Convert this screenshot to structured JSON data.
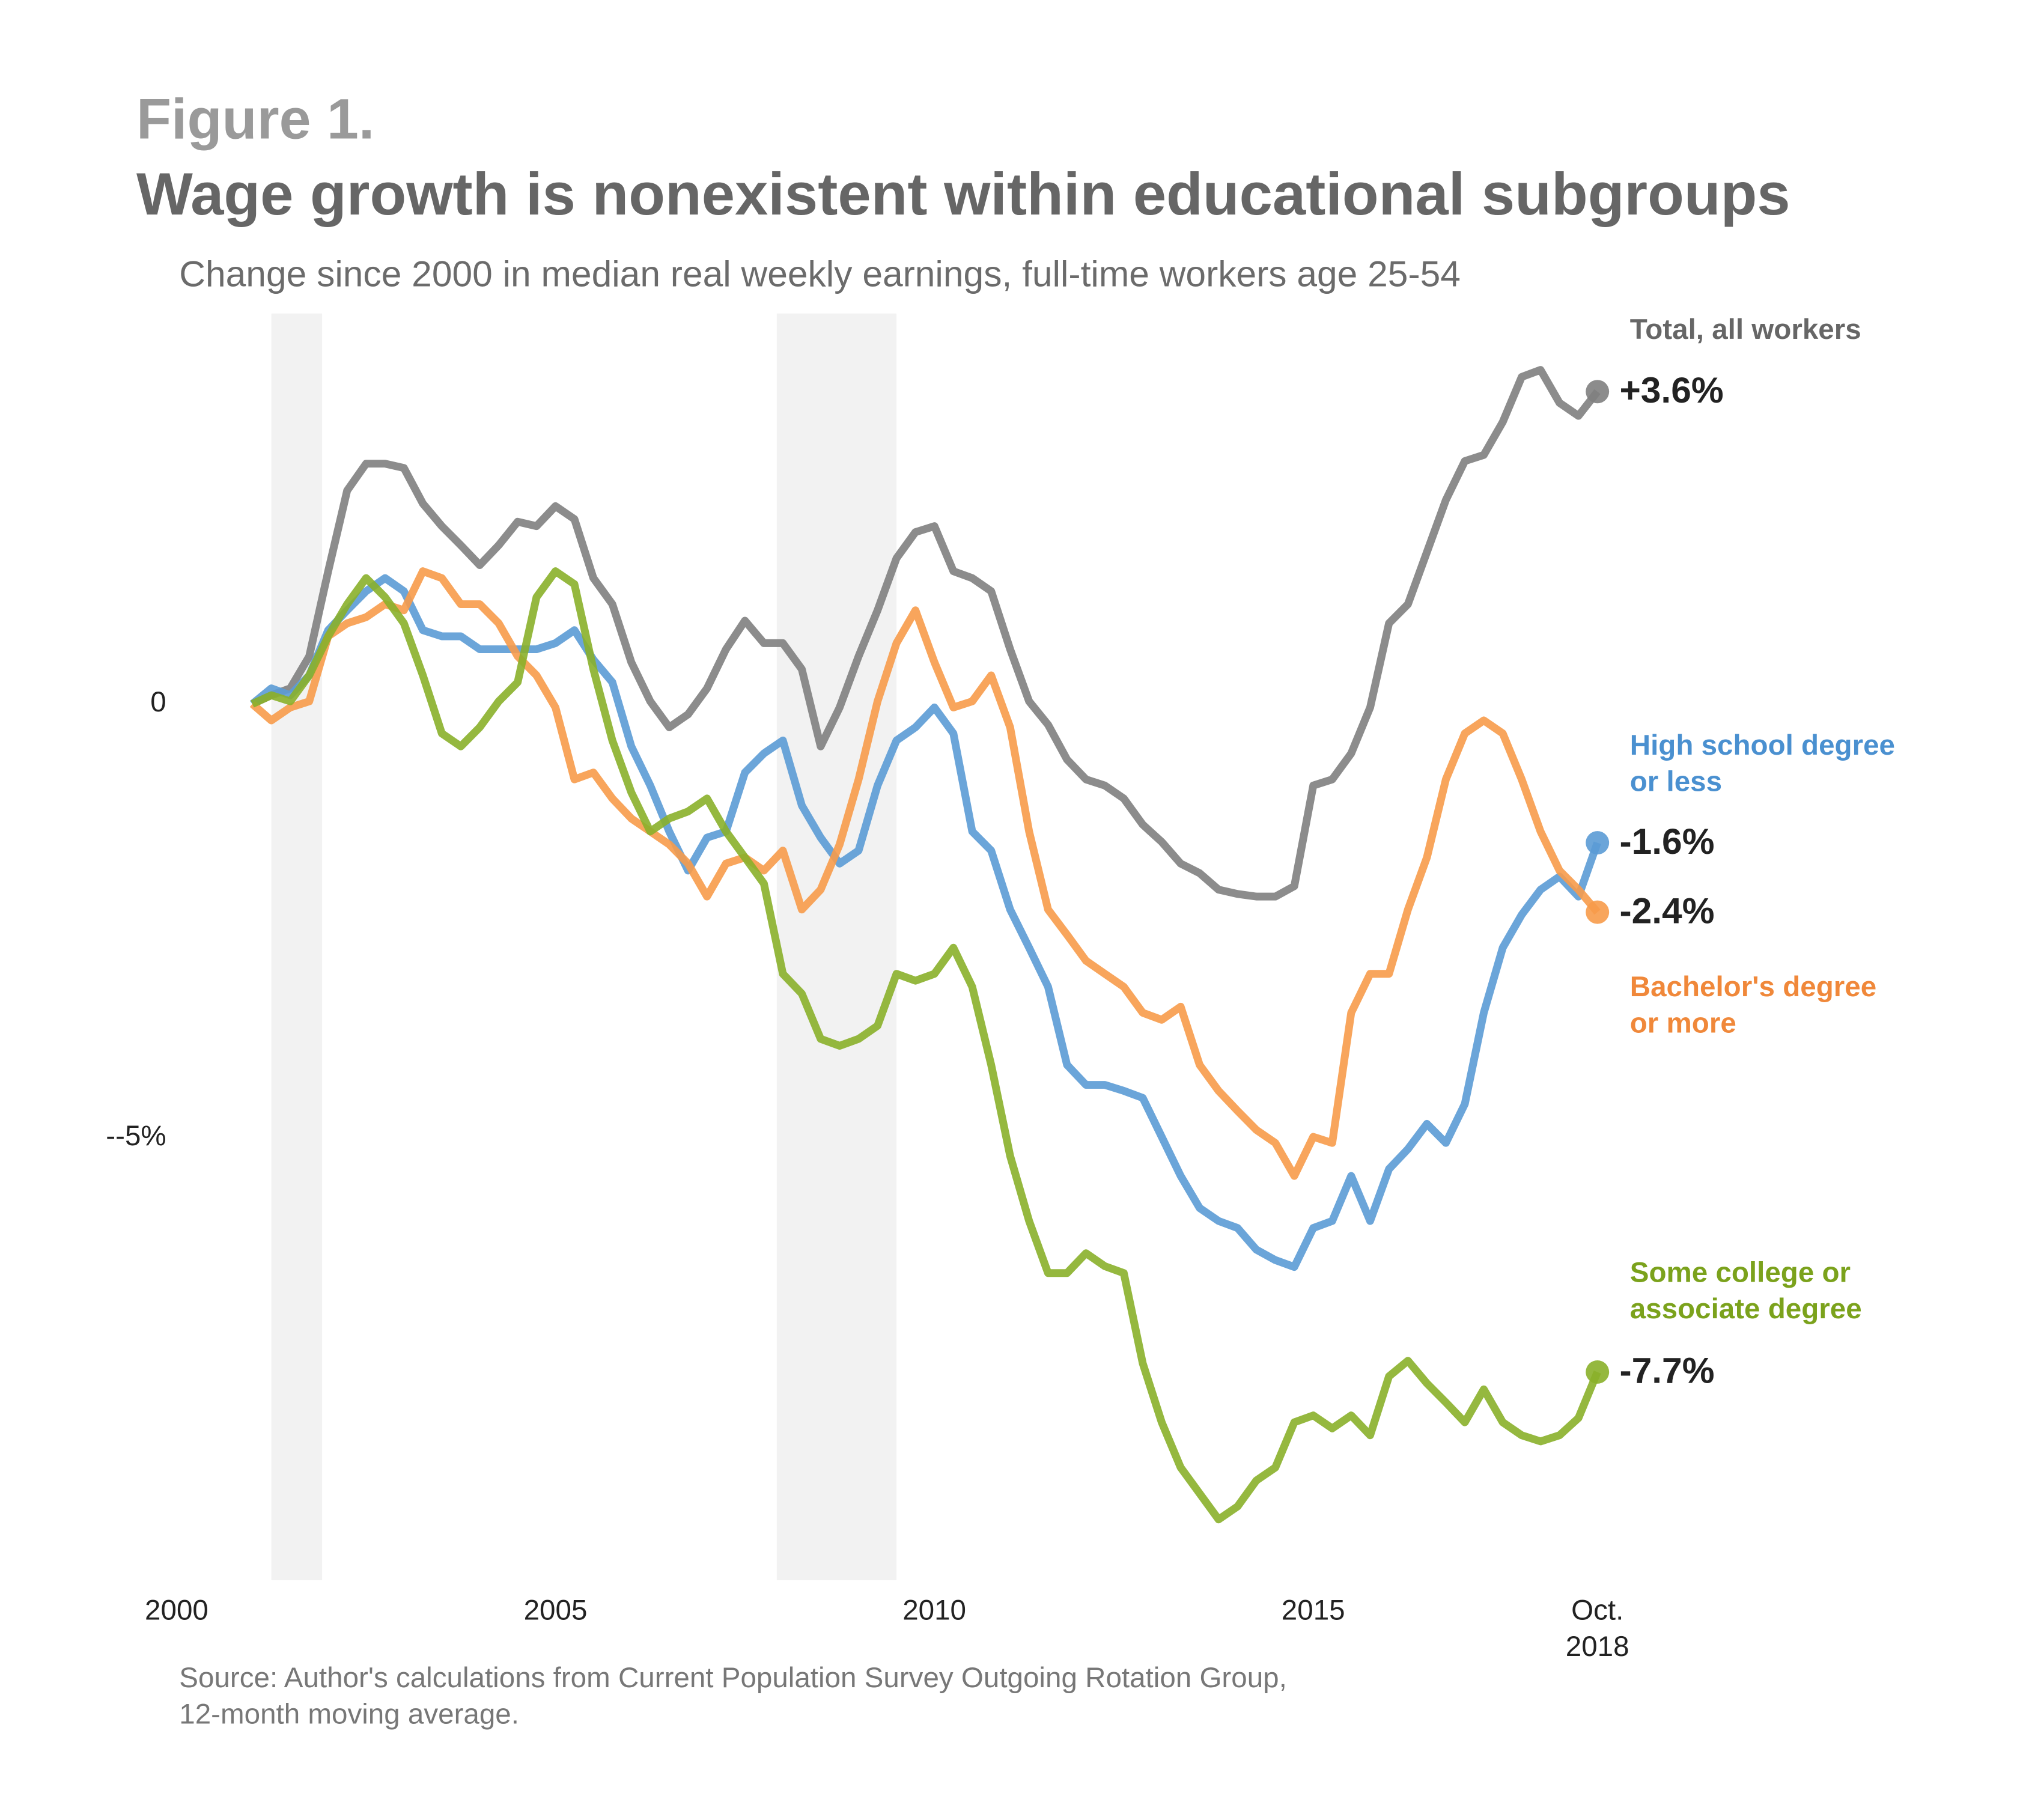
{
  "chart_data": {
    "type": "line",
    "figure_label": "Figure 1.",
    "title": "Wage growth is nonexistent within educational subgroups",
    "subtitle": "Change since 2000 in median real weekly earnings, full-time workers age 25-54",
    "source": "Source: Author's calculations from Current Population Survey Outgoing Rotation Group,\n12-month moving average.",
    "xlim": [
      2000,
      2018.75
    ],
    "xticks": [
      2000,
      2005,
      2010,
      2015,
      {
        "value": 2018.75,
        "label": "Oct.\n2018"
      }
    ],
    "ylim": [
      -10.1,
      4.5
    ],
    "yticks": [
      0,
      {
        "value": -5,
        "label": "--5%"
      }
    ],
    "grid": false,
    "shaded_periods": [
      [
        2001.25,
        2001.92
      ],
      [
        2007.92,
        2009.5
      ]
    ],
    "shade_color": "#f2f2f2",
    "x": [
      2001,
      2001.25,
      2001.5,
      2001.75,
      2002,
      2002.25,
      2002.5,
      2002.75,
      2003,
      2003.25,
      2003.5,
      2003.75,
      2004,
      2004.25,
      2004.5,
      2004.75,
      2005,
      2005.25,
      2005.5,
      2005.75,
      2006,
      2006.25,
      2006.5,
      2006.75,
      2007,
      2007.25,
      2007.5,
      2007.75,
      2008,
      2008.25,
      2008.5,
      2008.75,
      2009,
      2009.25,
      2009.5,
      2009.75,
      2010,
      2010.25,
      2010.5,
      2010.75,
      2011,
      2011.25,
      2011.5,
      2011.75,
      2012,
      2012.25,
      2012.5,
      2012.75,
      2013,
      2013.25,
      2013.5,
      2013.75,
      2014,
      2014.25,
      2014.5,
      2014.75,
      2015,
      2015.25,
      2015.5,
      2015.75,
      2016,
      2016.25,
      2016.5,
      2016.75,
      2017,
      2017.25,
      2017.5,
      2017.75,
      2018,
      2018.25,
      2018.5,
      2018.75
    ],
    "series": [
      {
        "name": "Total, all workers",
        "color": "#7f7f7f",
        "label_color": "#666666",
        "end_value_label": "+3.6%",
        "values": [
          0,
          0.1,
          0.18,
          0.55,
          1.53,
          2.46,
          2.77,
          2.77,
          2.72,
          2.31,
          2.05,
          1.83,
          1.6,
          1.83,
          2.1,
          2.05,
          2.28,
          2.13,
          1.45,
          1.15,
          0.48,
          0.03,
          -0.27,
          -0.12,
          0.18,
          0.63,
          0.96,
          0.7,
          0.7,
          0.4,
          -0.49,
          -0.04,
          0.55,
          1.08,
          1.68,
          1.98,
          2.05,
          1.53,
          1.45,
          1.3,
          0.63,
          0.03,
          -0.24,
          -0.64,
          -0.87,
          -0.94,
          -1.09,
          -1.39,
          -1.59,
          -1.84,
          -1.95,
          -2.14,
          -2.19,
          -2.22,
          -2.22,
          -2.1,
          -0.94,
          -0.87,
          -0.57,
          -0.04,
          0.93,
          1.15,
          1.75,
          2.35,
          2.8,
          2.87,
          3.25,
          3.77,
          3.85,
          3.47,
          3.32,
          3.6
        ]
      },
      {
        "name": "High school degree\nor less",
        "color": "#5b9bd5",
        "label_color": "#4a90d0",
        "end_value_label": "-1.6%",
        "values": [
          0,
          0.18,
          0.1,
          0.33,
          0.85,
          1.08,
          1.3,
          1.45,
          1.3,
          0.85,
          0.78,
          0.78,
          0.63,
          0.63,
          0.63,
          0.63,
          0.7,
          0.85,
          0.51,
          0.25,
          -0.49,
          -0.94,
          -1.47,
          -1.92,
          -1.54,
          -1.47,
          -0.79,
          -0.57,
          -0.42,
          -1.17,
          -1.54,
          -1.84,
          -1.69,
          -0.94,
          -0.42,
          -0.27,
          -0.04,
          -0.34,
          -1.47,
          -1.69,
          -2.37,
          -2.81,
          -3.26,
          -4.16,
          -4.39,
          -4.39,
          -4.46,
          -4.54,
          -4.99,
          -5.44,
          -5.81,
          -5.96,
          -6.04,
          -6.29,
          -6.41,
          -6.49,
          -6.04,
          -5.96,
          -5.44,
          -5.96,
          -5.36,
          -5.13,
          -4.84,
          -5.06,
          -4.61,
          -3.56,
          -2.81,
          -2.43,
          -2.14,
          -1.99,
          -2.22,
          -1.6
        ]
      },
      {
        "name": "Bachelor's degree\nor more",
        "color": "#f79b4a",
        "label_color": "#f0883a",
        "end_value_label": "-2.4%",
        "values": [
          0,
          -0.19,
          -0.04,
          0.03,
          0.78,
          0.93,
          1.0,
          1.15,
          1.08,
          1.53,
          1.45,
          1.15,
          1.15,
          0.93,
          0.55,
          0.33,
          -0.04,
          -0.87,
          -0.79,
          -1.09,
          -1.32,
          -1.47,
          -1.62,
          -1.84,
          -2.22,
          -1.84,
          -1.77,
          -1.92,
          -1.69,
          -2.37,
          -2.14,
          -1.62,
          -0.87,
          0.03,
          0.7,
          1.08,
          0.48,
          -0.04,
          0.03,
          0.33,
          -0.27,
          -1.47,
          -2.37,
          -2.66,
          -2.96,
          -3.11,
          -3.26,
          -3.56,
          -3.64,
          -3.49,
          -4.16,
          -4.46,
          -4.69,
          -4.91,
          -5.06,
          -5.44,
          -4.99,
          -5.06,
          -3.56,
          -3.11,
          -3.11,
          -2.37,
          -1.77,
          -0.87,
          -0.34,
          -0.19,
          -0.34,
          -0.87,
          -1.47,
          -1.92,
          -2.14,
          -2.4
        ]
      },
      {
        "name": "Some college or\nassociate degree",
        "color": "#8ab02a",
        "label_color": "#7ba21c",
        "end_value_label": "-7.7%",
        "values": [
          0,
          0.1,
          0.03,
          0.33,
          0.78,
          1.15,
          1.45,
          1.23,
          0.93,
          0.33,
          -0.34,
          -0.49,
          -0.27,
          0.03,
          0.25,
          1.23,
          1.53,
          1.38,
          0.4,
          -0.42,
          -1.02,
          -1.47,
          -1.32,
          -1.24,
          -1.09,
          -1.47,
          -1.77,
          -2.07,
          -3.11,
          -3.34,
          -3.86,
          -3.94,
          -3.86,
          -3.71,
          -3.11,
          -3.19,
          -3.11,
          -2.81,
          -3.26,
          -4.16,
          -5.21,
          -5.96,
          -6.56,
          -6.56,
          -6.33,
          -6.48,
          -6.56,
          -7.6,
          -8.28,
          -8.8,
          -9.1,
          -9.4,
          -9.25,
          -8.95,
          -8.8,
          -8.28,
          -8.2,
          -8.35,
          -8.2,
          -8.43,
          -7.75,
          -7.57,
          -7.83,
          -8.05,
          -8.28,
          -7.9,
          -8.28,
          -8.43,
          -8.5,
          -8.43,
          -8.23,
          -7.7
        ]
      }
    ]
  }
}
